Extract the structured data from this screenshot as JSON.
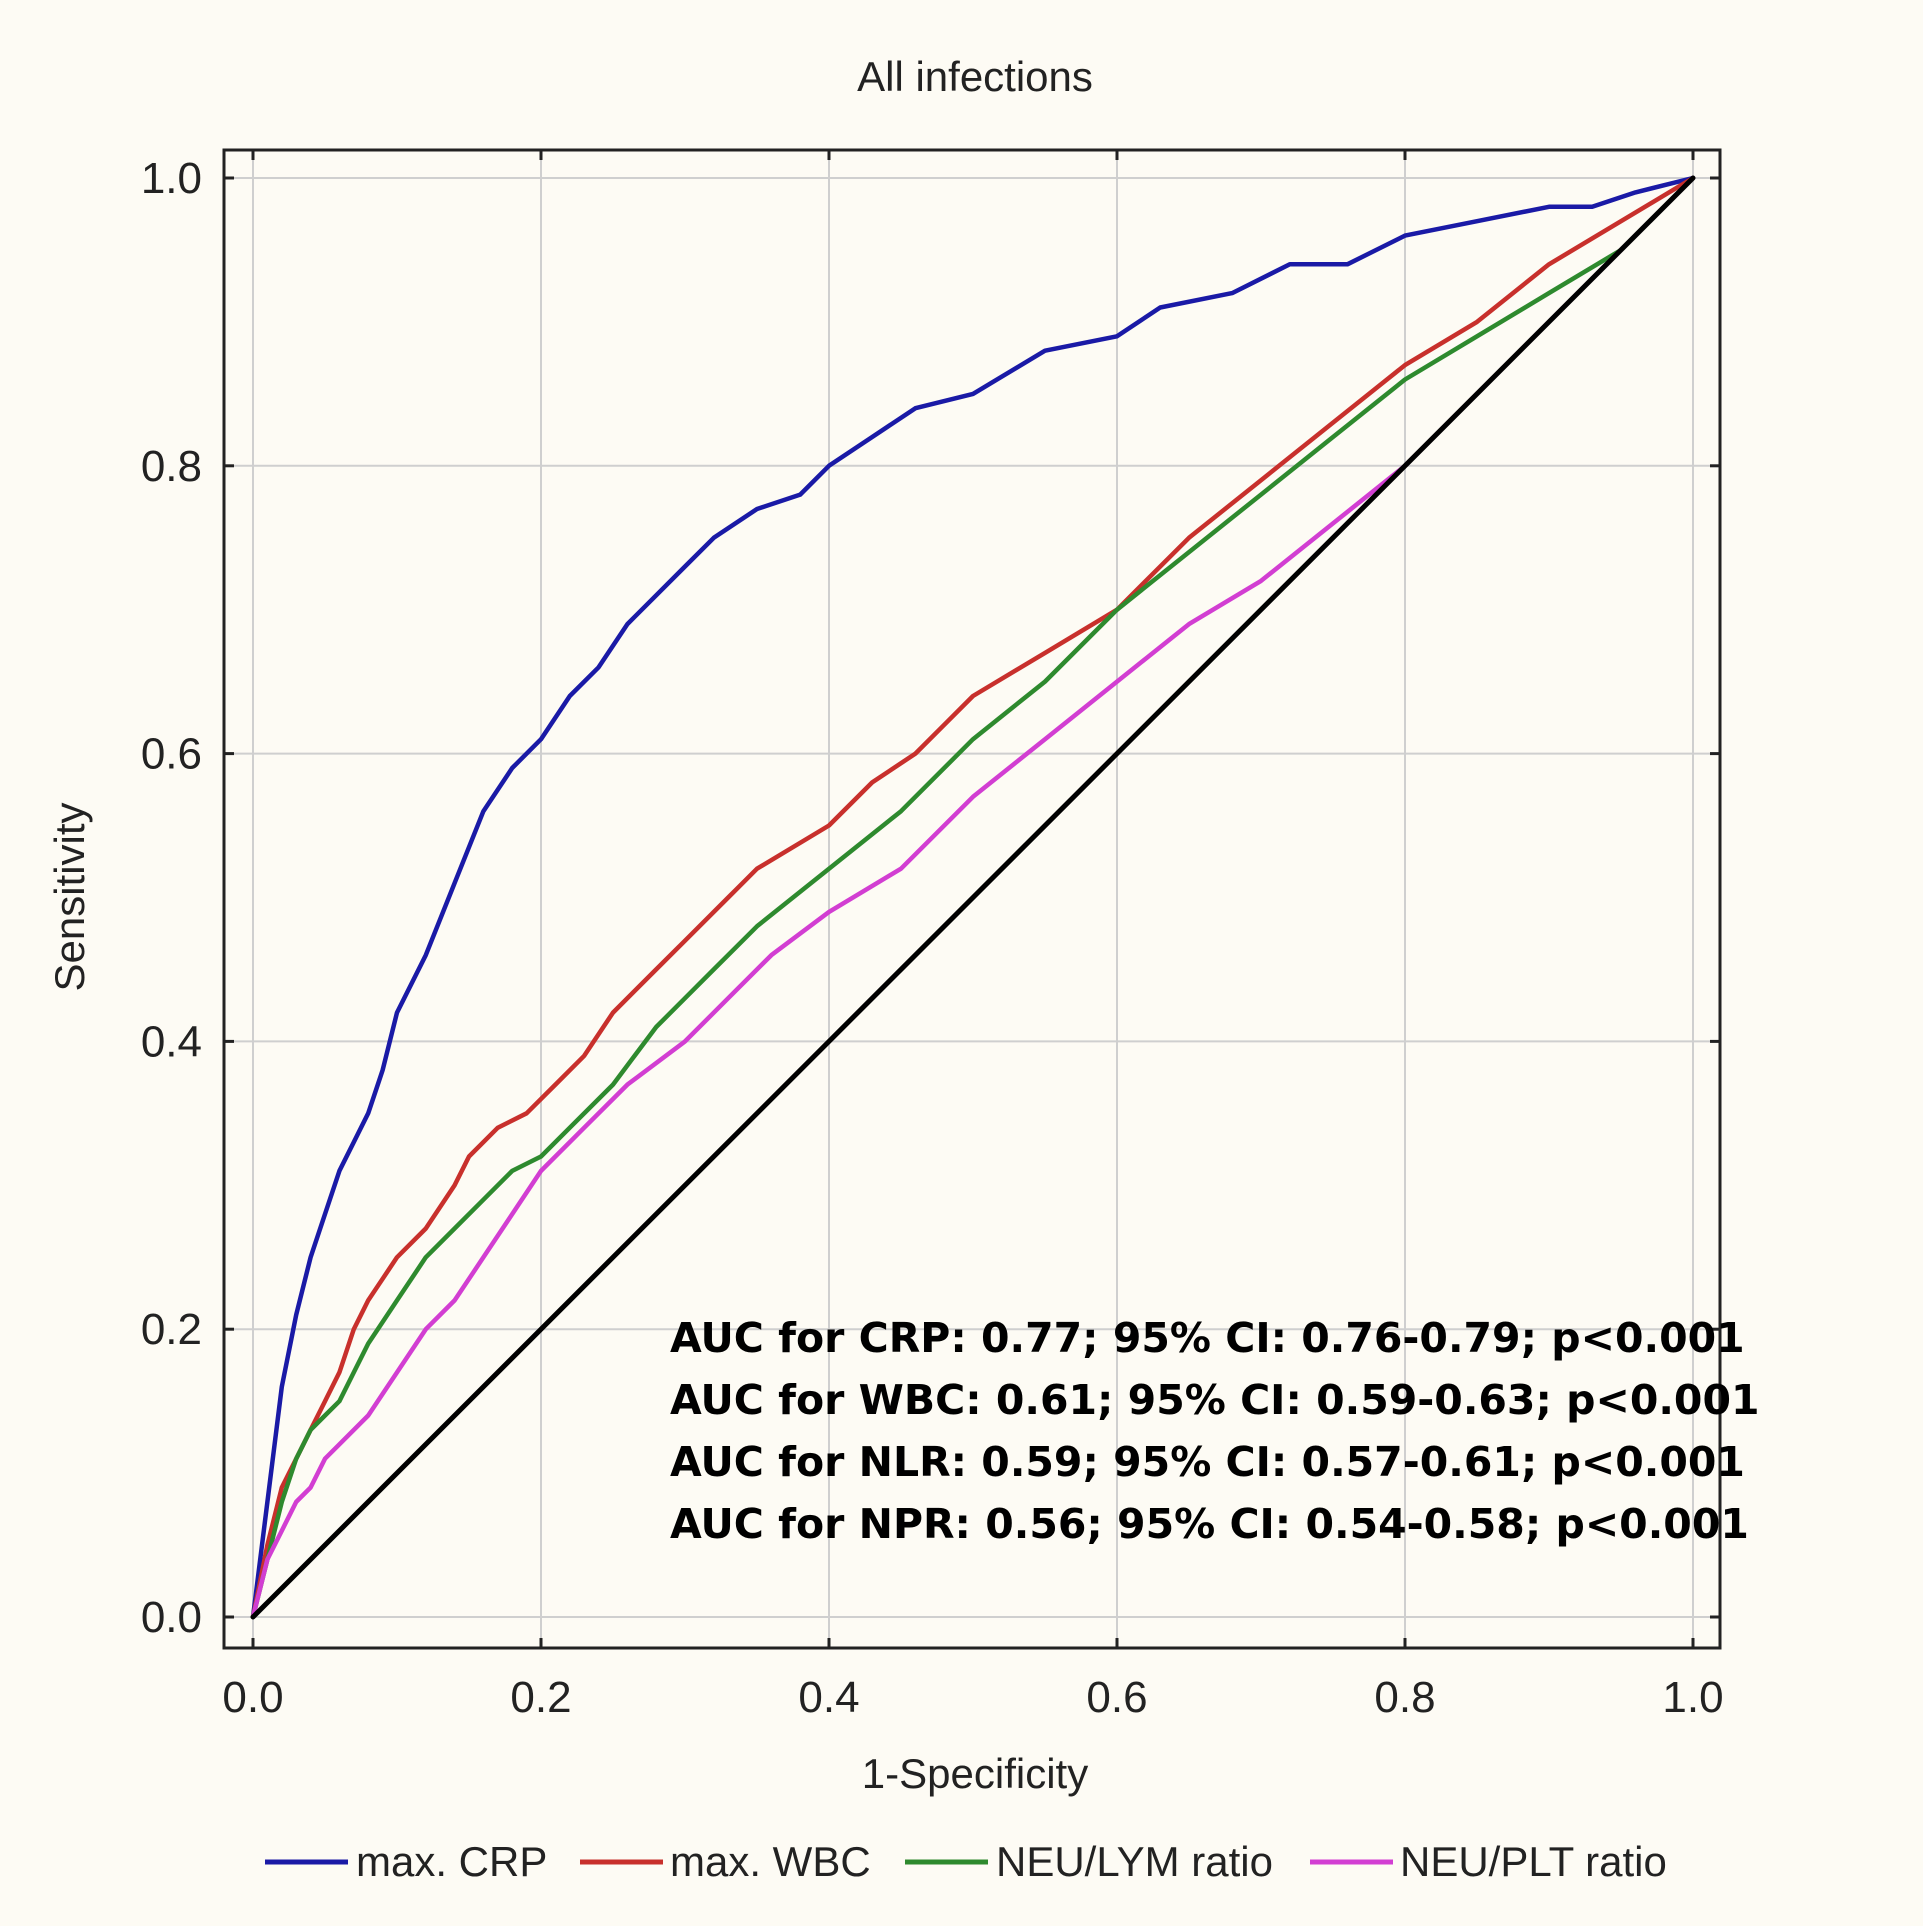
{
  "chart_data": {
    "type": "line",
    "title": "All infections",
    "xlabel": "1-Specificity",
    "ylabel": "Sensitivity",
    "xlim": [
      0,
      1
    ],
    "ylim": [
      0,
      1
    ],
    "x_ticks": [
      "0.0",
      "0.2",
      "0.4",
      "0.6",
      "0.8",
      "1.0"
    ],
    "y_ticks": [
      "0.0",
      "0.2",
      "0.4",
      "0.6",
      "0.8",
      "1.0"
    ],
    "grid": true,
    "legend_position": "bottom",
    "series": [
      {
        "name": "max. CRP",
        "color": "#1a1aa6",
        "points": [
          [
            0,
            0
          ],
          [
            0.01,
            0.08
          ],
          [
            0.02,
            0.16
          ],
          [
            0.03,
            0.21
          ],
          [
            0.04,
            0.25
          ],
          [
            0.05,
            0.28
          ],
          [
            0.06,
            0.31
          ],
          [
            0.07,
            0.33
          ],
          [
            0.08,
            0.35
          ],
          [
            0.09,
            0.38
          ],
          [
            0.1,
            0.42
          ],
          [
            0.12,
            0.46
          ],
          [
            0.14,
            0.51
          ],
          [
            0.16,
            0.56
          ],
          [
            0.18,
            0.59
          ],
          [
            0.2,
            0.61
          ],
          [
            0.22,
            0.64
          ],
          [
            0.24,
            0.66
          ],
          [
            0.26,
            0.69
          ],
          [
            0.28,
            0.71
          ],
          [
            0.3,
            0.73
          ],
          [
            0.32,
            0.75
          ],
          [
            0.35,
            0.77
          ],
          [
            0.38,
            0.78
          ],
          [
            0.4,
            0.8
          ],
          [
            0.43,
            0.82
          ],
          [
            0.46,
            0.84
          ],
          [
            0.5,
            0.85
          ],
          [
            0.55,
            0.88
          ],
          [
            0.6,
            0.89
          ],
          [
            0.63,
            0.91
          ],
          [
            0.68,
            0.92
          ],
          [
            0.72,
            0.94
          ],
          [
            0.76,
            0.94
          ],
          [
            0.8,
            0.96
          ],
          [
            0.85,
            0.97
          ],
          [
            0.9,
            0.98
          ],
          [
            0.93,
            0.98
          ],
          [
            0.96,
            0.99
          ],
          [
            1,
            1
          ]
        ]
      },
      {
        "name": "max. WBC",
        "color": "#c8302c",
        "points": [
          [
            0,
            0
          ],
          [
            0.01,
            0.05
          ],
          [
            0.02,
            0.09
          ],
          [
            0.03,
            0.11
          ],
          [
            0.04,
            0.13
          ],
          [
            0.05,
            0.15
          ],
          [
            0.06,
            0.17
          ],
          [
            0.07,
            0.2
          ],
          [
            0.08,
            0.22
          ],
          [
            0.1,
            0.25
          ],
          [
            0.12,
            0.27
          ],
          [
            0.14,
            0.3
          ],
          [
            0.15,
            0.32
          ],
          [
            0.17,
            0.34
          ],
          [
            0.19,
            0.35
          ],
          [
            0.21,
            0.37
          ],
          [
            0.23,
            0.39
          ],
          [
            0.25,
            0.42
          ],
          [
            0.28,
            0.45
          ],
          [
            0.3,
            0.47
          ],
          [
            0.33,
            0.5
          ],
          [
            0.35,
            0.52
          ],
          [
            0.4,
            0.55
          ],
          [
            0.43,
            0.58
          ],
          [
            0.46,
            0.6
          ],
          [
            0.48,
            0.62
          ],
          [
            0.5,
            0.64
          ],
          [
            0.55,
            0.67
          ],
          [
            0.6,
            0.7
          ],
          [
            0.65,
            0.75
          ],
          [
            0.7,
            0.79
          ],
          [
            0.75,
            0.83
          ],
          [
            0.8,
            0.87
          ],
          [
            0.85,
            0.9
          ],
          [
            0.9,
            0.94
          ],
          [
            0.95,
            0.97
          ],
          [
            1,
            1
          ]
        ]
      },
      {
        "name": "NEU/LYM ratio",
        "color": "#2e8a2e",
        "points": [
          [
            0,
            0
          ],
          [
            0.01,
            0.04
          ],
          [
            0.02,
            0.08
          ],
          [
            0.03,
            0.11
          ],
          [
            0.04,
            0.13
          ],
          [
            0.05,
            0.14
          ],
          [
            0.06,
            0.15
          ],
          [
            0.07,
            0.17
          ],
          [
            0.08,
            0.19
          ],
          [
            0.1,
            0.22
          ],
          [
            0.12,
            0.25
          ],
          [
            0.14,
            0.27
          ],
          [
            0.16,
            0.29
          ],
          [
            0.18,
            0.31
          ],
          [
            0.2,
            0.32
          ],
          [
            0.22,
            0.34
          ],
          [
            0.25,
            0.37
          ],
          [
            0.28,
            0.41
          ],
          [
            0.3,
            0.43
          ],
          [
            0.32,
            0.45
          ],
          [
            0.35,
            0.48
          ],
          [
            0.4,
            0.52
          ],
          [
            0.45,
            0.56
          ],
          [
            0.5,
            0.61
          ],
          [
            0.55,
            0.65
          ],
          [
            0.6,
            0.7
          ],
          [
            0.65,
            0.74
          ],
          [
            0.7,
            0.78
          ],
          [
            0.75,
            0.82
          ],
          [
            0.8,
            0.86
          ],
          [
            0.85,
            0.89
          ],
          [
            0.9,
            0.92
          ],
          [
            0.95,
            0.95
          ],
          [
            1,
            1
          ]
        ]
      },
      {
        "name": "NEU/PLT ratio",
        "color": "#d23ed2",
        "points": [
          [
            0,
            0
          ],
          [
            0.01,
            0.04
          ],
          [
            0.02,
            0.06
          ],
          [
            0.03,
            0.08
          ],
          [
            0.04,
            0.09
          ],
          [
            0.05,
            0.11
          ],
          [
            0.06,
            0.12
          ],
          [
            0.08,
            0.14
          ],
          [
            0.1,
            0.17
          ],
          [
            0.12,
            0.2
          ],
          [
            0.14,
            0.22
          ],
          [
            0.16,
            0.25
          ],
          [
            0.18,
            0.28
          ],
          [
            0.2,
            0.31
          ],
          [
            0.23,
            0.34
          ],
          [
            0.26,
            0.37
          ],
          [
            0.3,
            0.4
          ],
          [
            0.33,
            0.43
          ],
          [
            0.36,
            0.46
          ],
          [
            0.4,
            0.49
          ],
          [
            0.45,
            0.52
          ],
          [
            0.5,
            0.57
          ],
          [
            0.55,
            0.61
          ],
          [
            0.6,
            0.65
          ],
          [
            0.65,
            0.69
          ],
          [
            0.7,
            0.72
          ],
          [
            0.75,
            0.76
          ],
          [
            0.8,
            0.8
          ],
          [
            0.85,
            0.85
          ],
          [
            0.9,
            0.9
          ],
          [
            0.95,
            0.95
          ],
          [
            1,
            1
          ]
        ]
      },
      {
        "name": "reference",
        "color": "#000000",
        "points": [
          [
            0,
            0
          ],
          [
            1,
            1
          ]
        ]
      }
    ],
    "annotations": [
      "AUC for CRP: 0.77; 95% CI: 0.76-0.79; p<0.001",
      "AUC for WBC: 0.61; 95% CI: 0.59-0.63; p<0.001",
      "AUC for NLR: 0.59; 95% CI: 0.57-0.61; p<0.001",
      "AUC for NPR: 0.56; 95% CI: 0.54-0.58; p<0.001"
    ]
  }
}
